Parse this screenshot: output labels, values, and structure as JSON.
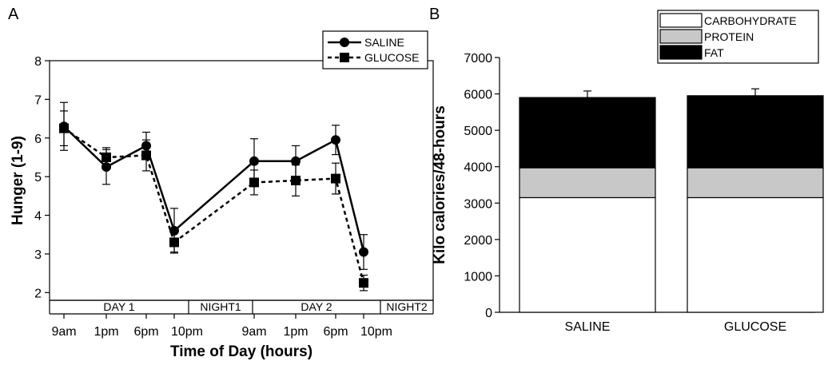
{
  "panels": {
    "a_label": "A",
    "b_label": "B"
  },
  "chart_data": [
    {
      "type": "line",
      "panel": "A",
      "xlabel": "Time of Day (hours)",
      "ylabel": "Hunger (1-9)",
      "ylim": [
        1.8,
        8
      ],
      "yticks": [
        2,
        3,
        4,
        5,
        6,
        7,
        8
      ],
      "x": [
        "9am",
        "1pm",
        "6pm",
        "10pm",
        "9am",
        "1pm",
        "6pm",
        "10pm"
      ],
      "segments": [
        [
          0,
          1,
          2,
          3
        ],
        [
          4,
          5,
          6,
          7
        ]
      ],
      "series": [
        {
          "name": "SALINE",
          "style": "solid",
          "marker": "circle",
          "values": [
            6.3,
            5.25,
            5.8,
            3.6,
            5.4,
            5.4,
            5.95,
            3.05
          ],
          "error": [
            0.62,
            0.45,
            0.35,
            0.58,
            0.58,
            0.4,
            0.38,
            0.45
          ],
          "linked": [
            [
              3,
              4
            ]
          ]
        },
        {
          "name": "GLUCOSE",
          "style": "dashed",
          "marker": "square",
          "values": [
            6.25,
            5.5,
            5.55,
            3.3,
            4.85,
            4.9,
            4.95,
            2.25
          ],
          "error": [
            0.45,
            0.25,
            0.4,
            0.25,
            0.32,
            0.4,
            0.4,
            0.2
          ],
          "linked": [
            [
              3,
              4
            ]
          ]
        }
      ],
      "bands": [
        {
          "label": "DAY 1",
          "span": [
            0,
            3
          ]
        },
        {
          "label": "NIGHT1",
          "span": [
            3,
            4
          ]
        },
        {
          "label": "DAY 2",
          "span": [
            4,
            7
          ]
        },
        {
          "label": "NIGHT2",
          "span": [
            7,
            8
          ]
        }
      ],
      "legend_position": "top-right",
      "grid": false
    },
    {
      "type": "bar",
      "stacked": true,
      "panel": "B",
      "ylabel": "Kilo calories/48-hours",
      "ylim": [
        0,
        7000
      ],
      "yticks": [
        0,
        1000,
        2000,
        3000,
        4000,
        5000,
        6000,
        7000
      ],
      "categories": [
        "SALINE",
        "GLUCOSE"
      ],
      "series": [
        {
          "name": "CARBOHYDRATE",
          "color": "#ffffff",
          "values": [
            3150,
            3150
          ],
          "error": [
            0,
            0
          ]
        },
        {
          "name": "PROTEIN",
          "color": "#c8c8c8",
          "values": [
            820,
            820
          ],
          "error": [
            180,
            260
          ]
        },
        {
          "name": "FAT",
          "color": "#000000",
          "values": [
            1930,
            1980
          ],
          "error": [
            180,
            190
          ]
        }
      ],
      "legend_position": "top",
      "grid": false
    }
  ]
}
